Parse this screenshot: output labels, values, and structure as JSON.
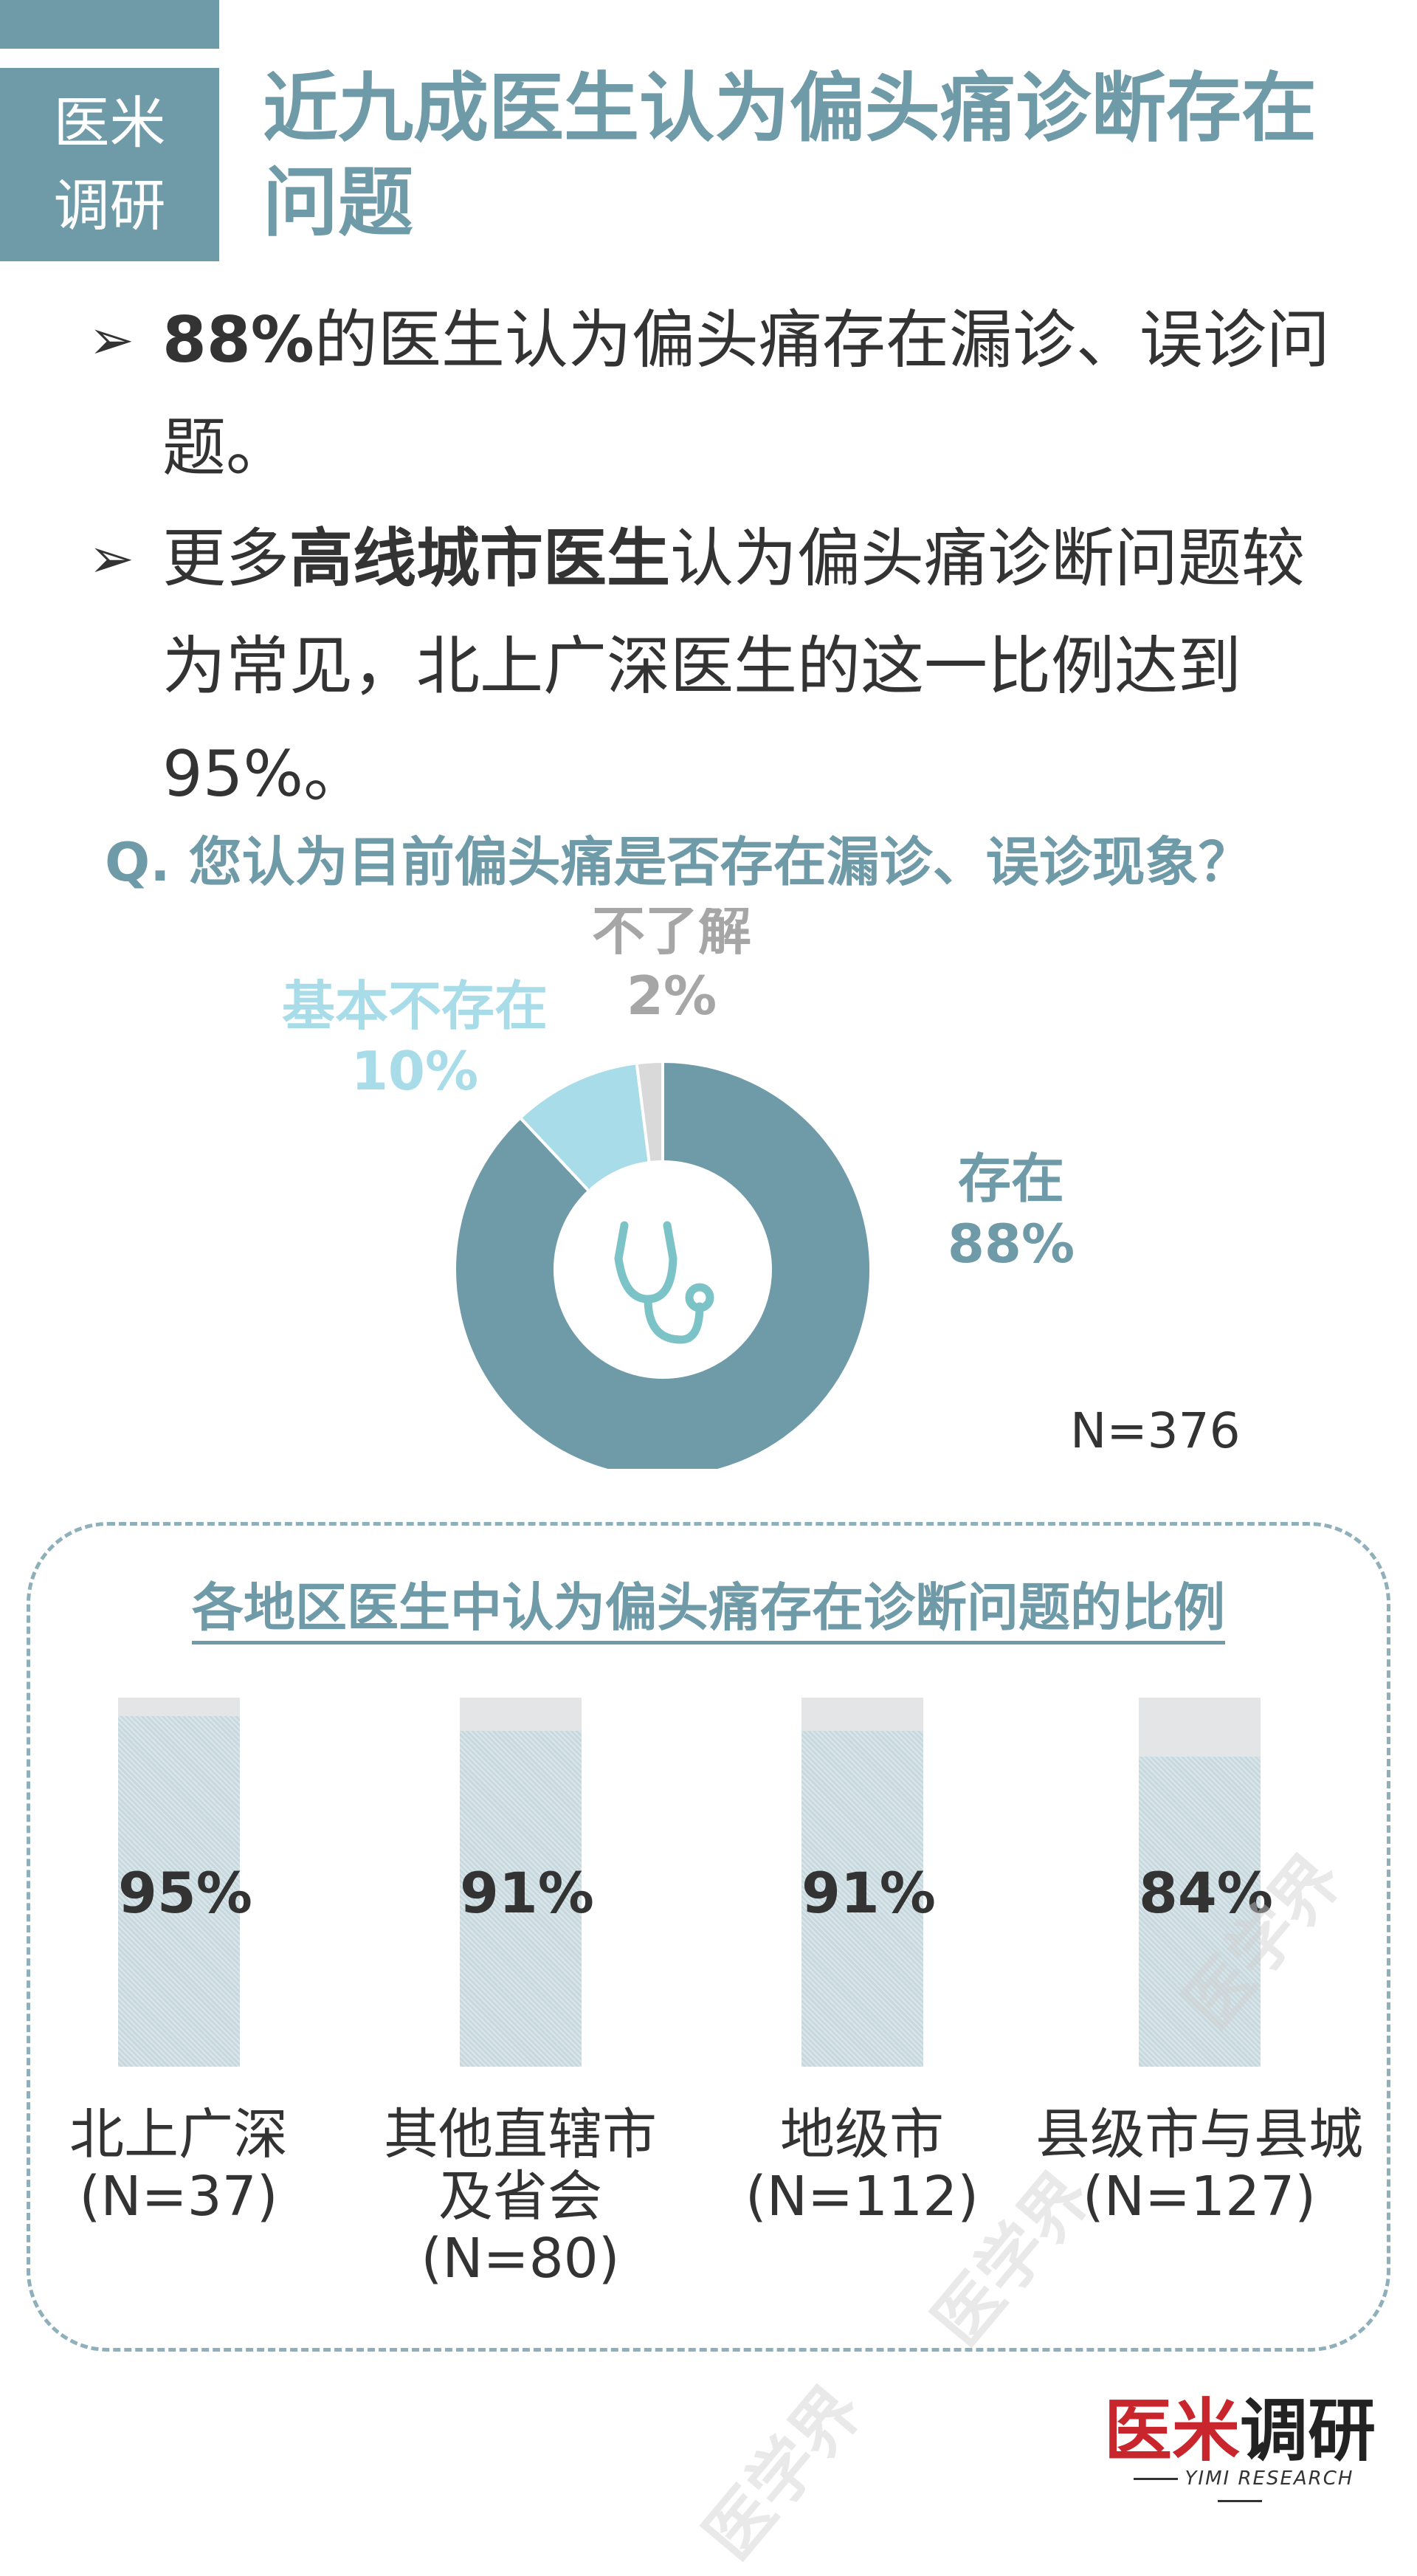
{
  "header": {
    "tag_line1": "医米",
    "tag_line2": "调研",
    "title": "近九成医生认为偏头痛诊断存在问题"
  },
  "bullets": [
    {
      "marker": "➢",
      "bold_lead": "88%",
      "text": "的医生认为偏头痛存在漏诊、误诊问题。"
    },
    {
      "marker": "➢",
      "pre": "更多",
      "bold_mid": "高线城市医生",
      "text": "认为偏头痛诊断问题较为常见，北上广深医生的这一比例达到95%。"
    }
  ],
  "question": "Q. 您认为目前偏头痛是否存在漏诊、误诊现象？",
  "donut": {
    "n_label": "N=376",
    "center_icon": "stethoscope-icon"
  },
  "panel": {
    "title": "各地区医生中认为偏头痛存在诊断问题的比例"
  },
  "watermark": "医学界",
  "logo": {
    "main_red": "医米",
    "main_black": "调研",
    "sub": "YIMI RESEARCH"
  },
  "chart_data": [
    {
      "type": "pie",
      "title": "Q. 您认为目前偏头痛是否存在漏诊、误诊现象？",
      "categories": [
        "存在",
        "基本不存在",
        "不了解"
      ],
      "values": [
        88,
        10,
        2
      ],
      "value_labels": [
        "88%",
        "10%",
        "2%"
      ],
      "colors": [
        "#6f9aa8",
        "#a8dce8",
        "#d9d9d9"
      ],
      "label_colors": [
        "#6f9aa8",
        "#a8dce8",
        "#a6a6a6"
      ],
      "donut": true
    },
    {
      "type": "bar",
      "title": "各地区医生中认为偏头痛存在诊断问题的比例",
      "categories": [
        "北上广深\n(N=37)",
        "其他直辖市\n及省会\n(N=80)",
        "地级市\n(N=112)",
        "县级市与县城\n(N=127)"
      ],
      "values": [
        95,
        91,
        91,
        84
      ],
      "value_labels": [
        "95%",
        "91%",
        "91%",
        "84%"
      ],
      "ylim": [
        0,
        100
      ],
      "colors": {
        "fill": "#c7d9de",
        "track": "#e3e5e6"
      }
    }
  ]
}
